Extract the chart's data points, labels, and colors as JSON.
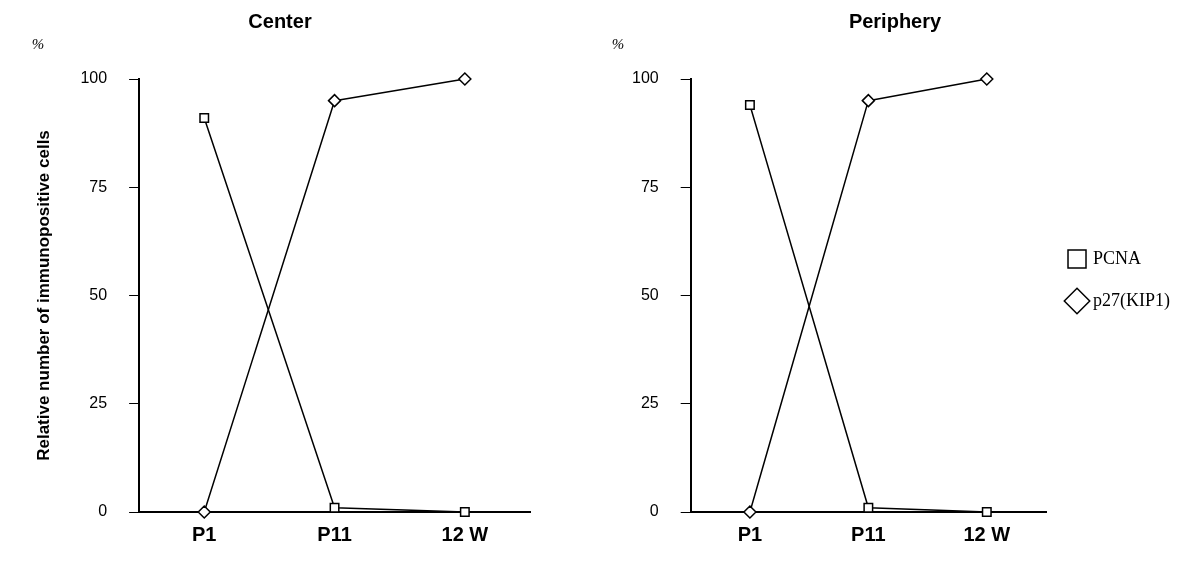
{
  "chart_data": [
    {
      "type": "line",
      "title": "Center",
      "ylabel": "Relative number of immunopositive cells",
      "annotations": [
        "%"
      ],
      "categories": [
        "P1",
        "P11",
        "12 W"
      ],
      "ylim": [
        0,
        100
      ],
      "yticks": [
        0,
        25,
        50,
        75,
        100
      ],
      "grid": false,
      "legend": false,
      "series": [
        {
          "color": "#000000",
          "marker": "square",
          "values": [
            91,
            1,
            0
          ]
        },
        {
          "color": "#000000",
          "marker": "diamond",
          "values": [
            0,
            95,
            100
          ]
        }
      ]
    },
    {
      "type": "line",
      "title": "Periphery",
      "annotations": [
        "%"
      ],
      "categories": [
        "P1",
        "P11",
        "12 W"
      ],
      "ylim": [
        0,
        100
      ],
      "yticks": [
        0,
        25,
        50,
        75,
        100
      ],
      "grid": false,
      "legend": "right",
      "series": [
        {
          "name": "PCNA",
          "color": "#000000",
          "marker": "square",
          "values": [
            94,
            1,
            0
          ]
        },
        {
          "name": "p27(KIP1)",
          "color": "#000000",
          "marker": "diamond",
          "values": [
            0,
            95,
            100
          ]
        }
      ]
    }
  ]
}
